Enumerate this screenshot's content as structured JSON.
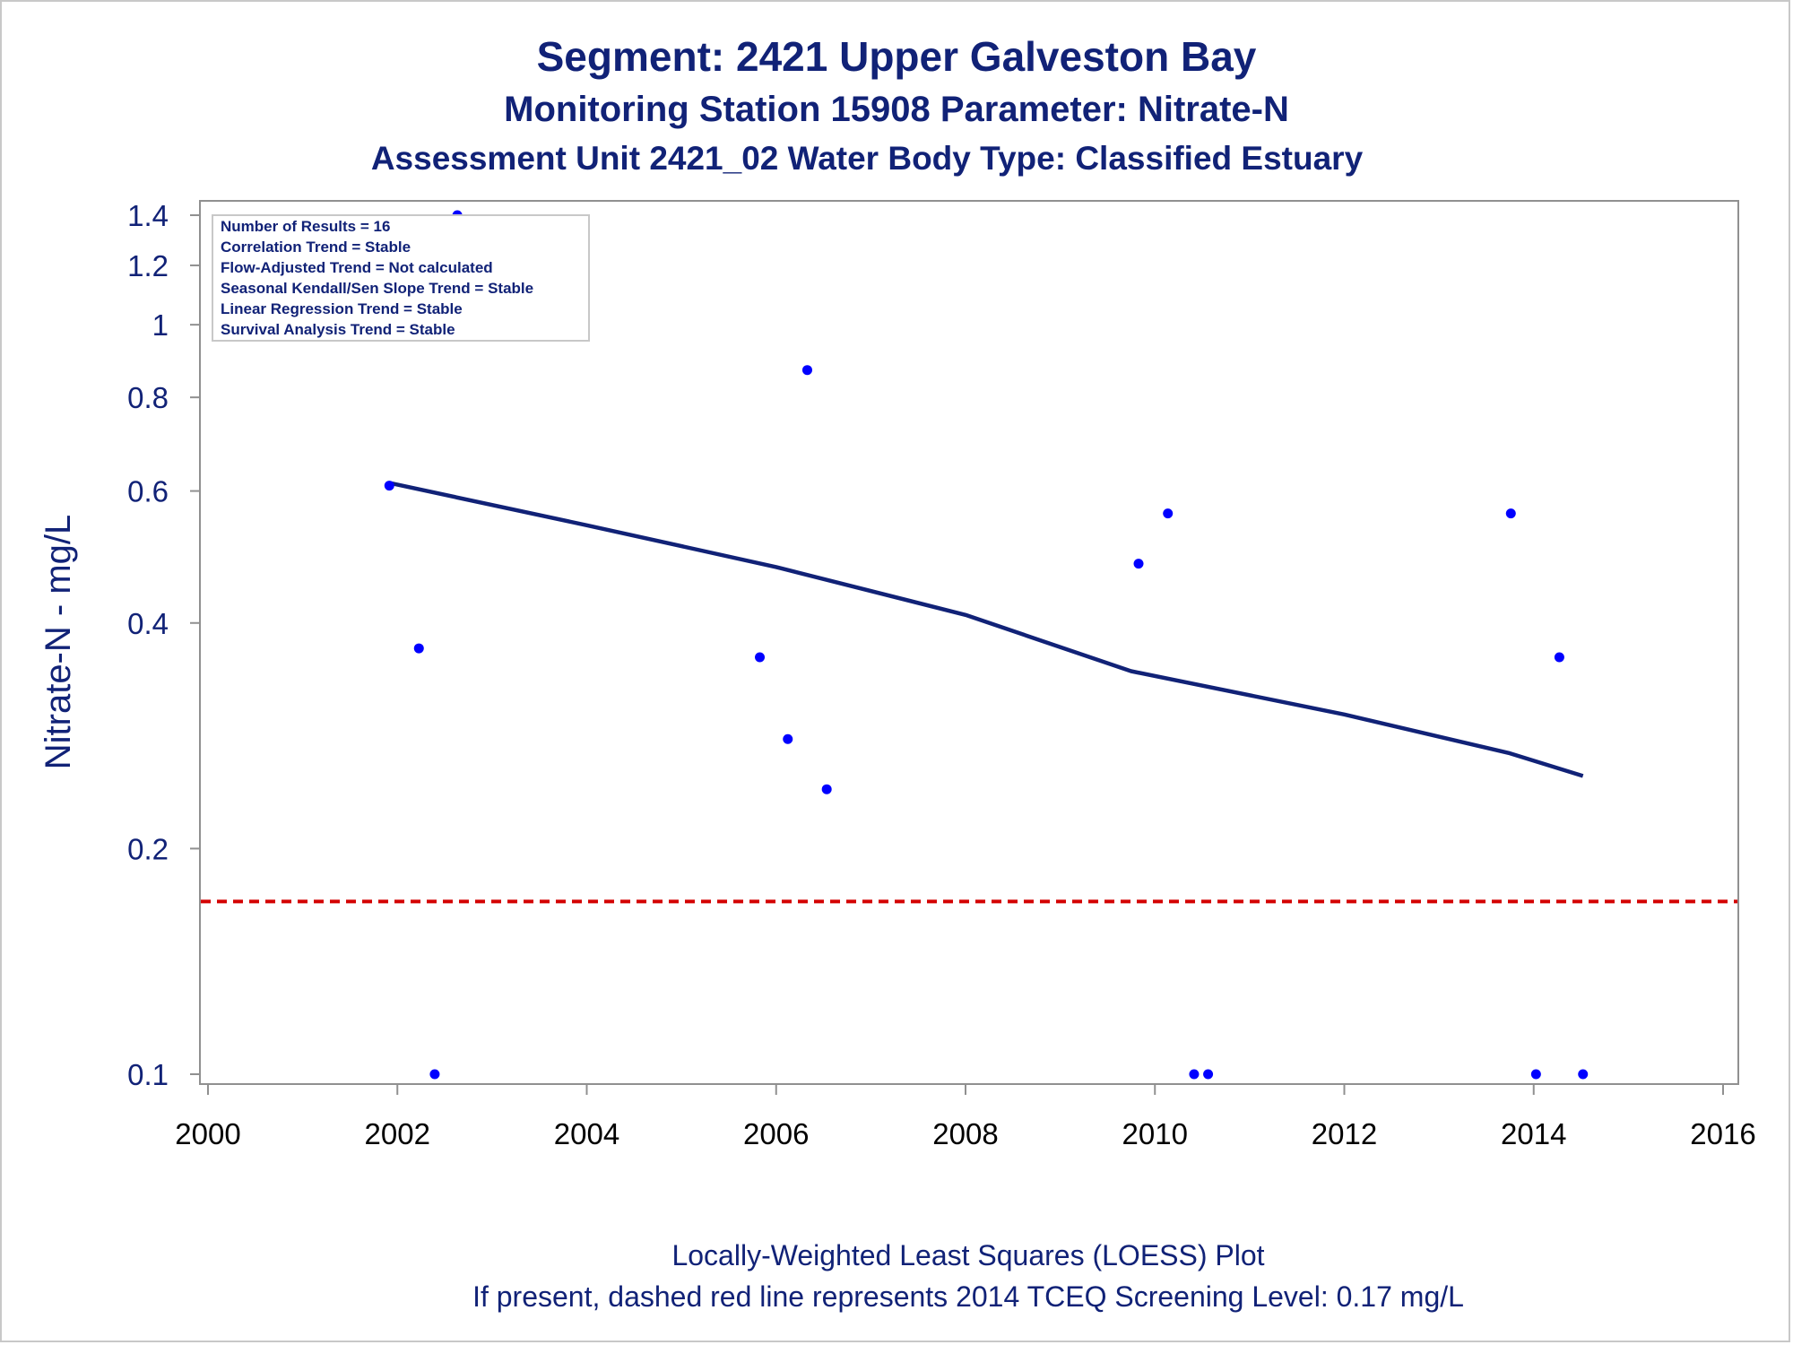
{
  "titles": {
    "line1": "Segment: 2421  Upper Galveston Bay",
    "line2": "Monitoring Station 15908 Parameter: Nitrate-N",
    "line3": "Assessment Unit 2421_02   Water Body Type: Classified Estuary"
  },
  "footnotes": {
    "line1": "Locally-Weighted Least Squares (LOESS) Plot",
    "line2": "If present, dashed red line represents 2014 TCEQ Screening Level: 0.17 mg/L"
  },
  "stats_box": [
    "Number of Results = 16",
    "Correlation Trend = Stable",
    "Flow-Adjusted Trend = Not calculated",
    "Seasonal Kendall/Sen Slope Trend = Stable",
    "Linear Regression Trend = Stable",
    "Survival Analysis Trend = Stable"
  ],
  "colors": {
    "points": "#0000ff",
    "loess": "#112277",
    "screening_line": "#d40000",
    "text": "#112277",
    "axis": "#909090"
  },
  "chart_data": {
    "type": "scatter",
    "ylabel": "Nitrate-N - mg/L",
    "xlabel": "",
    "y_scale": "log",
    "xlim": [
      2000,
      2016
    ],
    "ylim": [
      0.097,
      1.45
    ],
    "x_ticks": [
      "2000",
      "2002",
      "2004",
      "2006",
      "2008",
      "2010",
      "2012",
      "2014",
      "2016"
    ],
    "y_ticks": [
      "0.1",
      "0.2",
      "0.4",
      "0.6",
      "0.8",
      "1",
      "1.2",
      "1.4"
    ],
    "grid": false,
    "points": [
      {
        "date": "2001-12-01",
        "value": 0.61
      },
      {
        "date": "2002-03-25",
        "value": 0.37
      },
      {
        "date": "2002-05-25",
        "value": 0.1
      },
      {
        "date": "2002-08-20",
        "value": 1.4
      },
      {
        "date": "2005-10-30",
        "value": 0.36
      },
      {
        "date": "2006-02-15",
        "value": 0.28
      },
      {
        "date": "2006-05-01",
        "value": 0.87
      },
      {
        "date": "2006-07-15",
        "value": 0.24
      },
      {
        "date": "2009-10-30",
        "value": 0.48
      },
      {
        "date": "2010-02-20",
        "value": 0.56
      },
      {
        "date": "2010-06-01",
        "value": 0.1
      },
      {
        "date": "2010-07-25",
        "value": 0.1
      },
      {
        "date": "2013-10-05",
        "value": 0.56
      },
      {
        "date": "2014-01-10",
        "value": 0.1
      },
      {
        "date": "2014-04-10",
        "value": 0.36
      },
      {
        "date": "2014-07-10",
        "value": 0.1
      }
    ],
    "loess": [
      {
        "date": "2001-12-01",
        "value": 0.615
      },
      {
        "date": "2004-01-01",
        "value": 0.54
      },
      {
        "date": "2006-01-01",
        "value": 0.475
      },
      {
        "date": "2008-01-01",
        "value": 0.41
      },
      {
        "date": "2009-10-01",
        "value": 0.345
      },
      {
        "date": "2012-01-01",
        "value": 0.302
      },
      {
        "date": "2013-10-01",
        "value": 0.268
      },
      {
        "date": "2014-07-10",
        "value": 0.25
      }
    ],
    "screening_level": 0.17
  }
}
